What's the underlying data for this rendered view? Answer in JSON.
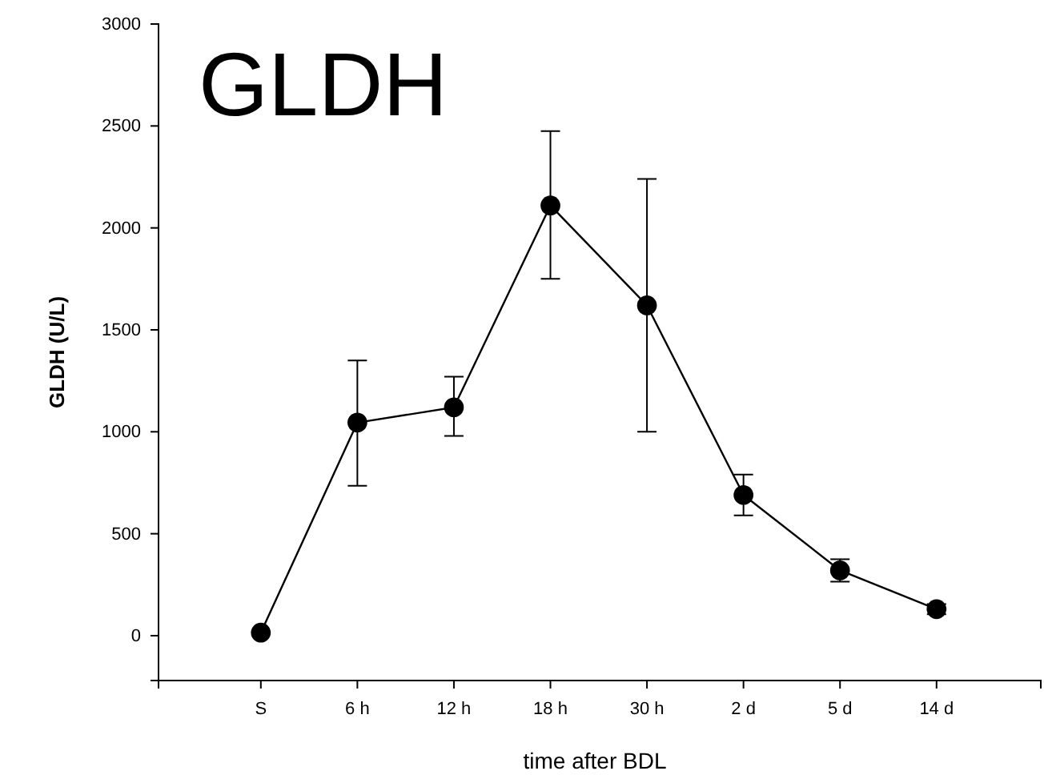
{
  "chart_data": {
    "type": "line",
    "title": "GLDH",
    "xlabel": "time after BDL",
    "ylabel": "GLDH (U/L)",
    "categories": [
      "S",
      "6 h",
      "12 h",
      "18 h",
      "30 h",
      "2 d",
      "5 d",
      "14 d"
    ],
    "series": [
      {
        "color": "#000000",
        "values": [
          15,
          1045,
          1120,
          2110,
          1620,
          690,
          320,
          130
        ],
        "errors": [
          null,
          [
            735,
            1350
          ],
          [
            980,
            1270
          ],
          [
            1750,
            2475
          ],
          [
            1000,
            2240
          ],
          [
            590,
            790
          ],
          [
            265,
            375
          ],
          [
            105,
            155
          ]
        ]
      }
    ],
    "ylim": [
      -220,
      3000
    ],
    "yticks": [
      0,
      500,
      1000,
      1500,
      2000,
      2500,
      3000
    ],
    "marker": "circle",
    "line_style": "solid"
  }
}
